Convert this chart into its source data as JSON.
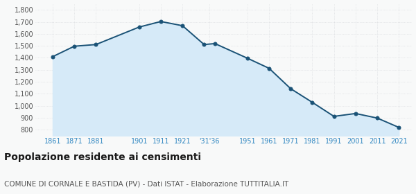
{
  "years": [
    1861,
    1871,
    1881,
    1901,
    1911,
    1921,
    1931,
    1936,
    1951,
    1961,
    1971,
    1981,
    1991,
    2001,
    2011,
    2021
  ],
  "population": [
    1410,
    1497,
    1511,
    1657,
    1703,
    1668,
    1511,
    1519,
    1397,
    1313,
    1143,
    1029,
    912,
    936,
    898,
    820
  ],
  "ylim": [
    750,
    1850
  ],
  "yticks": [
    800,
    900,
    1000,
    1100,
    1200,
    1300,
    1400,
    1500,
    1600,
    1700,
    1800
  ],
  "ytick_labels": [
    "800",
    "900",
    "1,000",
    "1,100",
    "1,200",
    "1,300",
    "1,400",
    "1,500",
    "1,600",
    "1,700",
    "1,800"
  ],
  "xlim_left": 1853,
  "xlim_right": 2027,
  "xtick_positions": [
    1861,
    1871,
    1881,
    1901,
    1911,
    1921,
    1933.5,
    1951,
    1961,
    1971,
    1981,
    1991,
    2001,
    2011,
    2021
  ],
  "xtick_labels": [
    "1861",
    "1871",
    "1881",
    "1901",
    "1911",
    "1921",
    "'31'36",
    "1951",
    "1961",
    "1971",
    "1981",
    "1991",
    "2001",
    "2011",
    "2021"
  ],
  "line_color": "#1a5276",
  "fill_color": "#d6eaf8",
  "marker_color": "#1a5276",
  "background_color": "#f8f9f9",
  "grid_color": "#d5d8dc",
  "title": "Popolazione residente ai censimenti",
  "subtitle": "COMUNE DI CORNALE E BASTIDA (PV) - Dati ISTAT - Elaborazione TUTTITALIA.IT",
  "title_fontsize": 10,
  "subtitle_fontsize": 7.5,
  "xtick_color": "#2e86c1",
  "ytick_color": "#555555",
  "title_color": "#1a1a1a",
  "subtitle_color": "#555555"
}
